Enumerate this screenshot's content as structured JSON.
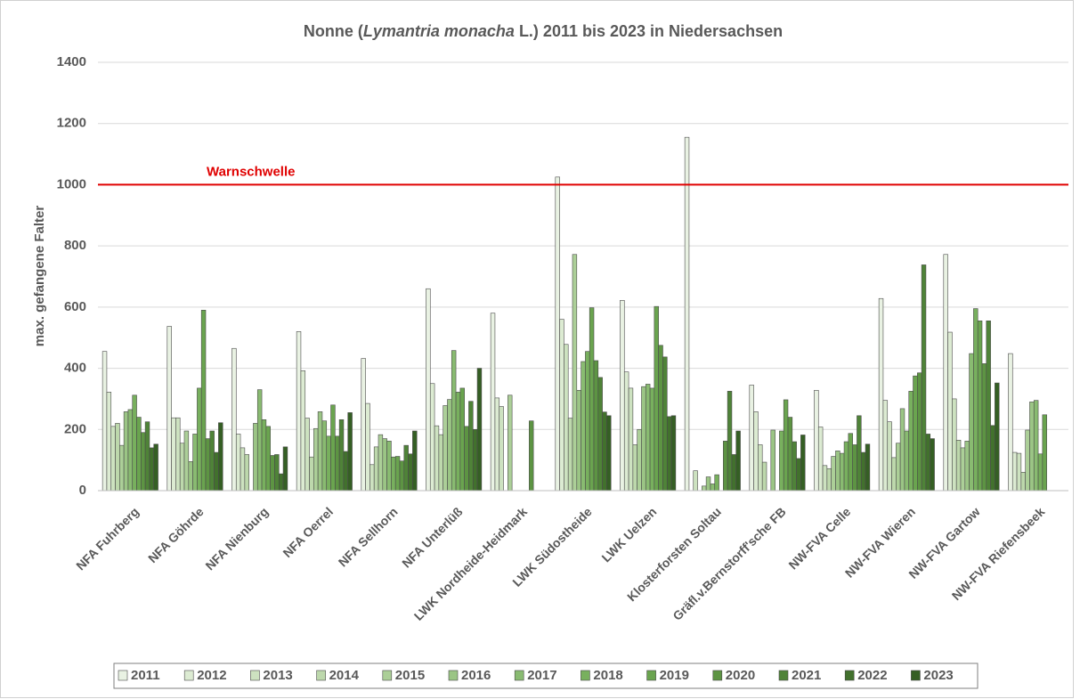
{
  "chart_data": {
    "type": "bar",
    "title_parts": [
      "Nonne (",
      "Lymantria  monacha",
      " L.) 2011 bis 2023 in Niedersachsen"
    ],
    "y_label": "max. gefangene Falter",
    "categories": [
      "NFA Fuhrberg",
      "NFA Göhrde",
      "NFA Nienburg",
      "NFA Oerrel",
      "NFA Sellhorn",
      "NFA Unterlüß",
      "LWK Nordheide-Heidmark",
      "LWK Südostheide",
      "LWK Uelzen",
      "Klosterforsten Soltau",
      "Gräfl.v.Bernstorff'sche FB",
      "NW-FVA  Celle",
      "NW-FVA Wieren",
      "NW-FVA Gartow",
      "NW-FVA Riefensbeek"
    ],
    "series": [
      {
        "name": "2011",
        "color": "#e9f2e3",
        "values": [
          455,
          537,
          465,
          520,
          432,
          660,
          580,
          1025,
          622,
          1155,
          345,
          328,
          628,
          772,
          448
        ]
      },
      {
        "name": "2012",
        "color": "#dcebd2",
        "values": [
          322,
          238,
          185,
          392,
          285,
          350,
          303,
          560,
          388,
          null,
          258,
          208,
          295,
          518,
          125
        ]
      },
      {
        "name": "2013",
        "color": "#cde2c0",
        "values": [
          210,
          238,
          140,
          237,
          85,
          212,
          275,
          478,
          335,
          65,
          150,
          82,
          225,
          300,
          122
        ]
      },
      {
        "name": "2014",
        "color": "#bdd8ac",
        "values": [
          220,
          155,
          118,
          110,
          143,
          183,
          null,
          237,
          150,
          null,
          93,
          72,
          108,
          165,
          60
        ]
      },
      {
        "name": "2015",
        "color": "#accf98",
        "values": [
          148,
          195,
          null,
          203,
          183,
          278,
          312,
          772,
          200,
          15,
          null,
          112,
          155,
          140,
          198
        ]
      },
      {
        "name": "2016",
        "color": "#9bc585",
        "values": [
          258,
          95,
          220,
          258,
          170,
          298,
          null,
          328,
          340,
          45,
          198,
          130,
          268,
          162,
          290
        ]
      },
      {
        "name": "2017",
        "color": "#89bb71",
        "values": [
          265,
          185,
          330,
          228,
          162,
          458,
          null,
          422,
          348,
          22,
          null,
          122,
          195,
          448,
          295
        ]
      },
      {
        "name": "2018",
        "color": "#78b05e",
        "values": [
          312,
          335,
          232,
          178,
          110,
          322,
          null,
          455,
          335,
          52,
          195,
          160,
          325,
          595,
          120
        ]
      },
      {
        "name": "2019",
        "color": "#6aa44f",
        "values": [
          240,
          590,
          210,
          280,
          112,
          335,
          null,
          598,
          602,
          null,
          297,
          187,
          375,
          555,
          248
        ]
      },
      {
        "name": "2020",
        "color": "#5d9443",
        "values": [
          190,
          170,
          115,
          178,
          97,
          210,
          228,
          425,
          475,
          162,
          240,
          150,
          385,
          415,
          null
        ]
      },
      {
        "name": "2021",
        "color": "#4f8338",
        "values": [
          225,
          195,
          118,
          232,
          148,
          292,
          null,
          370,
          437,
          325,
          160,
          245,
          738,
          555,
          null
        ]
      },
      {
        "name": "2022",
        "color": "#42712d",
        "values": [
          140,
          125,
          55,
          128,
          120,
          200,
          null,
          257,
          242,
          118,
          105,
          125,
          185,
          213,
          null
        ]
      },
      {
        "name": "2023",
        "color": "#355f24",
        "values": [
          152,
          222,
          143,
          255,
          195,
          400,
          null,
          245,
          245,
          195,
          182,
          152,
          170,
          352,
          null
        ]
      }
    ],
    "ylim": [
      0,
      1400
    ],
    "yticks": [
      0,
      200,
      400,
      600,
      800,
      1000,
      1200,
      1400
    ],
    "grid": true,
    "threshold": {
      "value": 1000,
      "label": "Warnschwelle",
      "color": "#e00000"
    }
  }
}
